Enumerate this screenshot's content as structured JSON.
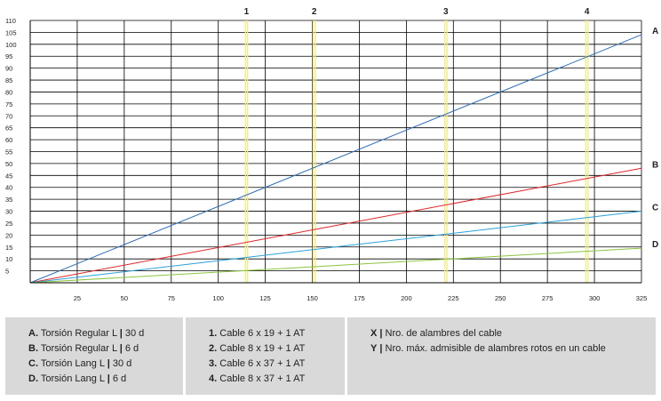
{
  "chart_data": {
    "type": "line",
    "x_ticks": [
      25,
      50,
      75,
      100,
      125,
      150,
      175,
      200,
      225,
      250,
      275,
      300,
      325
    ],
    "y_ticks": [
      5,
      10,
      15,
      20,
      25,
      30,
      35,
      40,
      45,
      50,
      55,
      60,
      65,
      70,
      75,
      80,
      85,
      90,
      95,
      100,
      105,
      110
    ],
    "xlim": [
      0,
      325
    ],
    "ylim": [
      0,
      110
    ],
    "grid": true,
    "series": [
      {
        "name": "A",
        "color": "#2f6eb5",
        "x": [
          0,
          325
        ],
        "y": [
          0,
          104
        ]
      },
      {
        "name": "B",
        "color": "#e0262b",
        "x": [
          0,
          325
        ],
        "y": [
          0,
          48
        ]
      },
      {
        "name": "C",
        "color": "#2aa1d8",
        "x": [
          0,
          325
        ],
        "y": [
          0,
          30
        ]
      },
      {
        "name": "D",
        "color": "#8cc43f",
        "x": [
          0,
          325
        ],
        "y": [
          0,
          14.5
        ]
      }
    ],
    "vertical_markers": [
      {
        "label": "1",
        "x": 115,
        "color": "#f2ec86"
      },
      {
        "label": "2",
        "x": 151,
        "color": "#f2ec86"
      },
      {
        "label": "3",
        "x": 221,
        "color": "#f2ec86"
      },
      {
        "label": "4",
        "x": 296,
        "color": "#f2ec86"
      }
    ]
  },
  "legend": {
    "series": [
      {
        "key": "A.",
        "text": "Torsión Regular L",
        "value": "30 d"
      },
      {
        "key": "B.",
        "text": "Torsión Regular L",
        "value": "6 d"
      },
      {
        "key": "C.",
        "text": "Torsión Lang L",
        "value": "30 d"
      },
      {
        "key": "D.",
        "text": "Torsión Lang L",
        "value": "6 d"
      }
    ],
    "cables": [
      {
        "key": "1.",
        "text": "Cable 6 x 19 + 1 AT"
      },
      {
        "key": "2.",
        "text": "Cable 8 x 19 + 1 AT"
      },
      {
        "key": "3.",
        "text": "Cable 6 x 37 + 1 AT"
      },
      {
        "key": "4.",
        "text": "Cable 8 x 37 + 1 AT"
      }
    ],
    "axes": [
      {
        "key": "X",
        "text": "Nro. de alambres del cable"
      },
      {
        "key": "Y",
        "text": "Nro. máx. admisible de alambres rotos en un cable"
      }
    ]
  }
}
